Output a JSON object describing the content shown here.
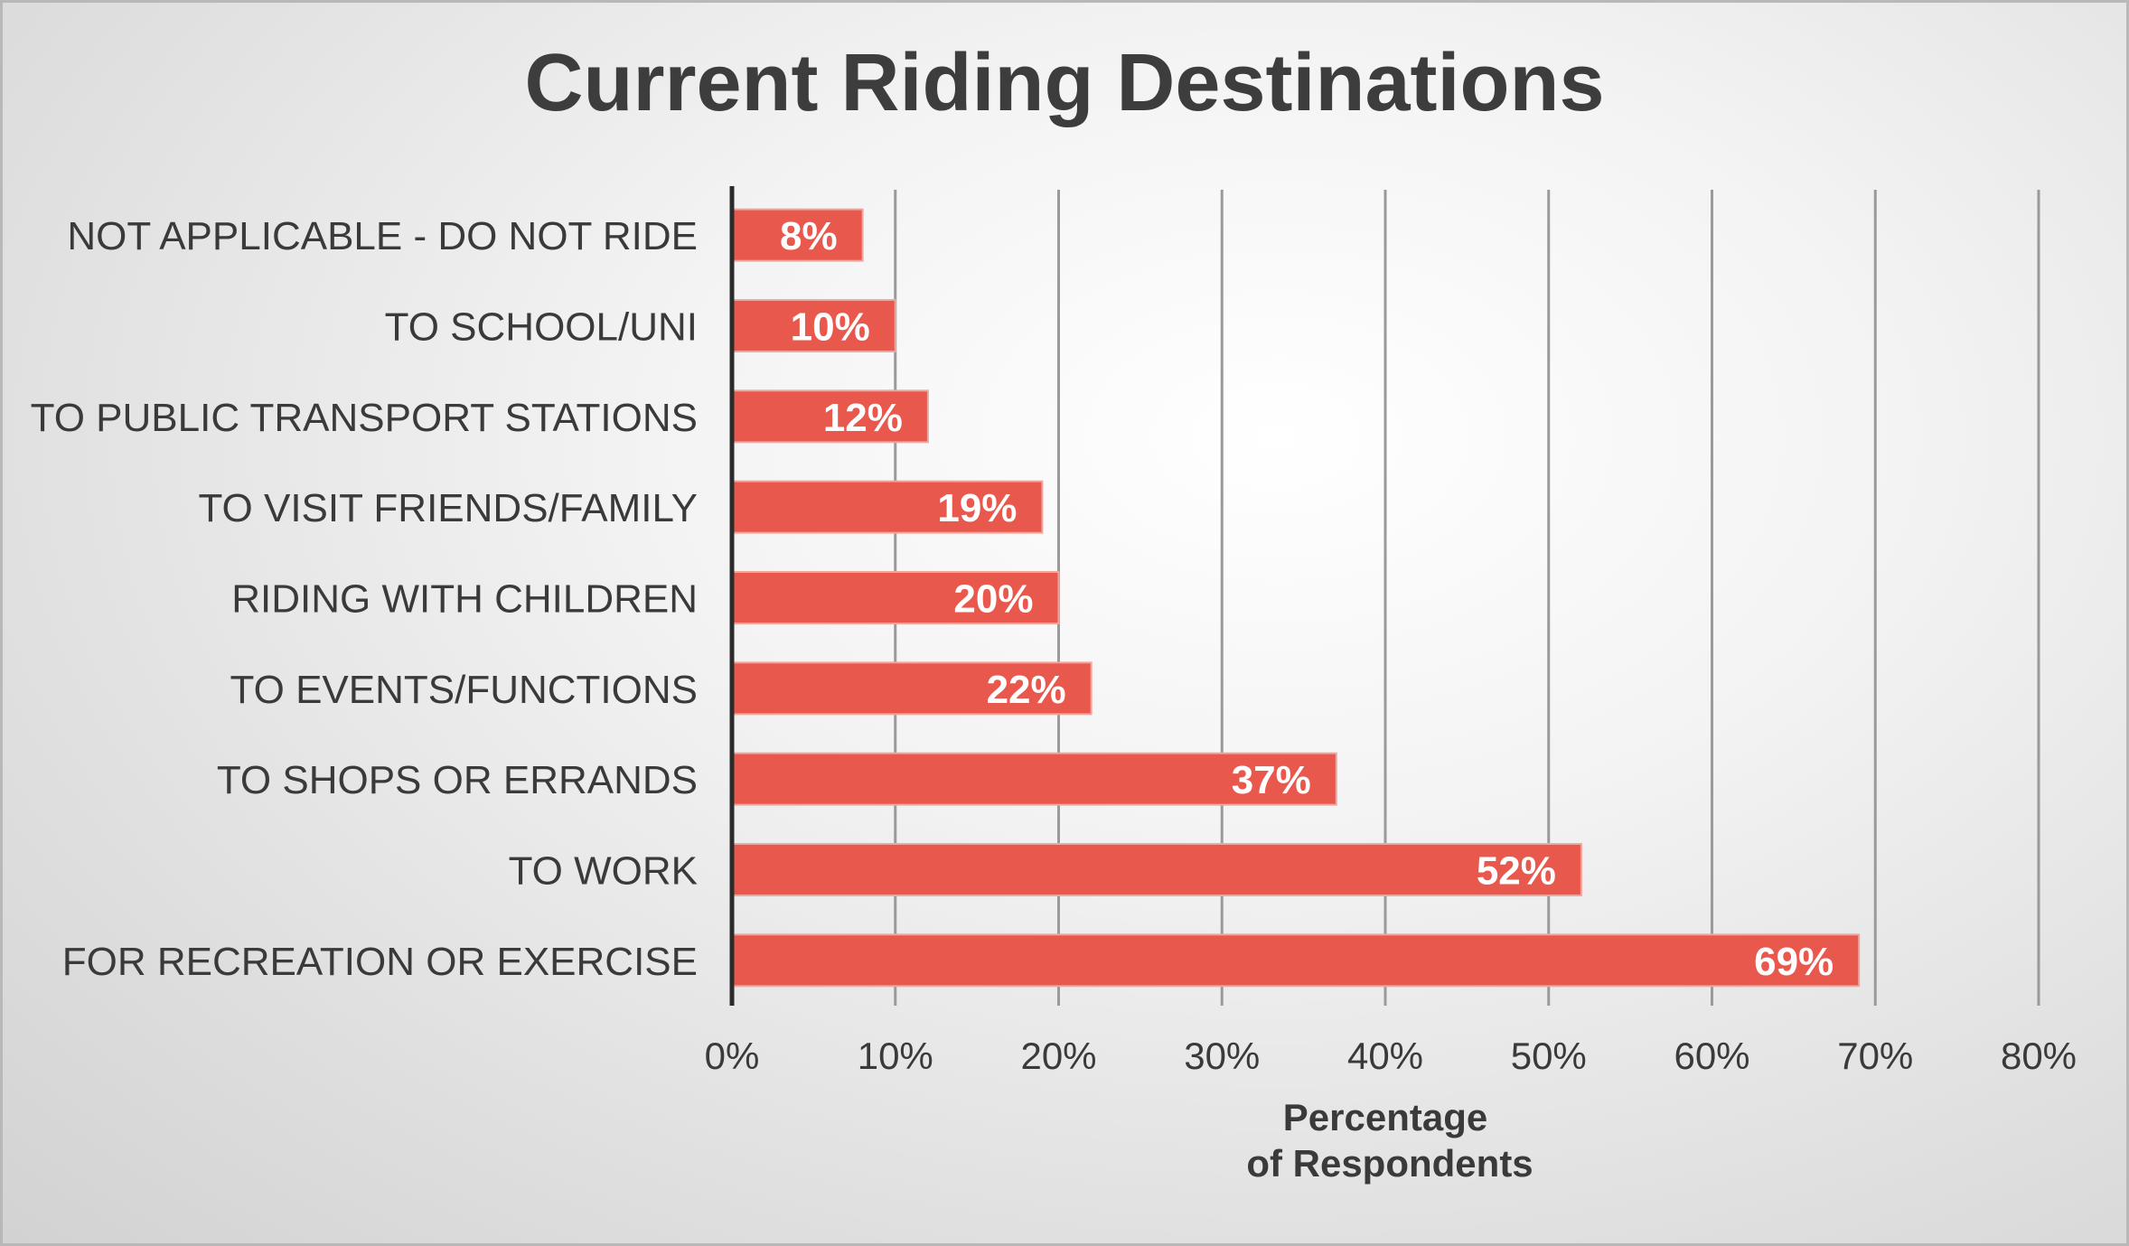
{
  "chart_data": {
    "type": "bar",
    "orientation": "horizontal",
    "title": "Current Riding Destinations",
    "xlabel_lines": [
      "Percentage",
      "of Respondents"
    ],
    "categories": [
      "NOT APPLICABLE - DO NOT RIDE",
      "TO SCHOOL/UNI",
      "TO PUBLIC TRANSPORT STATIONS",
      "TO VISIT FRIENDS/FAMILY",
      "RIDING WITH CHILDREN",
      "TO EVENTS/FUNCTIONS",
      "TO SHOPS OR ERRANDS",
      "TO WORK",
      "FOR RECREATION OR EXERCISE"
    ],
    "values": [
      8,
      10,
      12,
      19,
      20,
      22,
      37,
      52,
      69
    ],
    "value_labels": [
      "8%",
      "10%",
      "12%",
      "19%",
      "20%",
      "22%",
      "37%",
      "52%",
      "69%"
    ],
    "xlim": [
      0,
      80
    ],
    "xticks": [
      0,
      10,
      20,
      30,
      40,
      50,
      60,
      70,
      80
    ],
    "xtick_labels": [
      "0%",
      "10%",
      "20%",
      "30%",
      "40%",
      "50%",
      "60%",
      "70%",
      "80%"
    ],
    "grid": "vertical",
    "legend": "none",
    "colors": {
      "bar": "#e8584d",
      "bar_edge": "#f2a49d",
      "gridline": "#9a9a9a",
      "axis": "#2b2b2b"
    }
  }
}
